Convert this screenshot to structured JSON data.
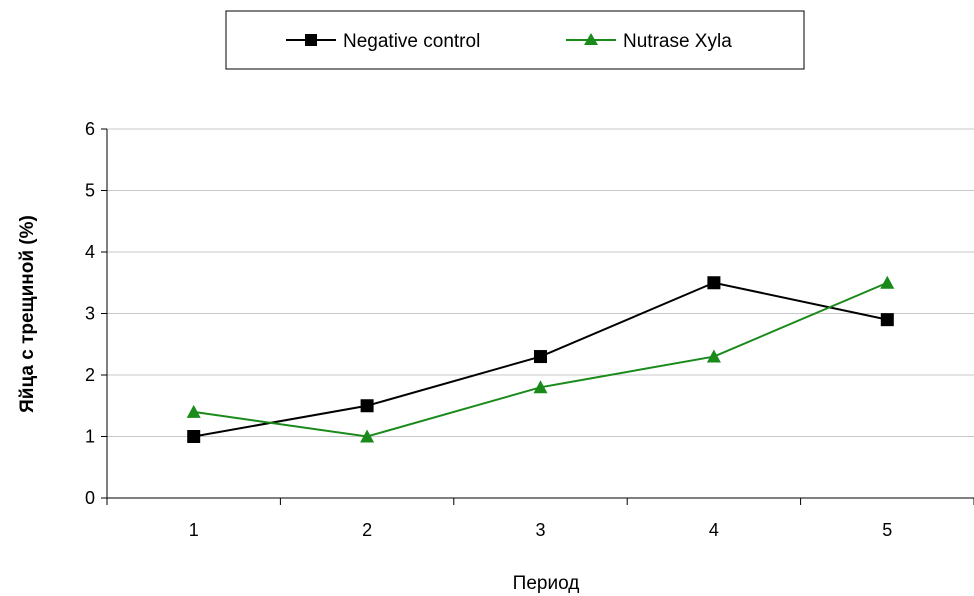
{
  "chart_data": {
    "type": "line",
    "title": "",
    "xlabel": "Период",
    "ylabel": "Яйца с трещиной (%)",
    "categories": [
      "1",
      "2",
      "3",
      "4",
      "5"
    ],
    "ylim": [
      0,
      6
    ],
    "yticks": [
      "0",
      "1",
      "2",
      "3",
      "4",
      "5",
      "6"
    ],
    "grid": "horizontal",
    "legend": "top",
    "series": [
      {
        "name": "Negative control",
        "values": [
          1.0,
          1.5,
          2.3,
          3.5,
          2.9
        ],
        "color": "#000000",
        "marker": "square"
      },
      {
        "name": "Nutrase Xyla",
        "values": [
          1.4,
          1.0,
          1.8,
          2.3,
          3.5
        ],
        "color": "#1a8a1a",
        "marker": "triangle"
      }
    ]
  }
}
